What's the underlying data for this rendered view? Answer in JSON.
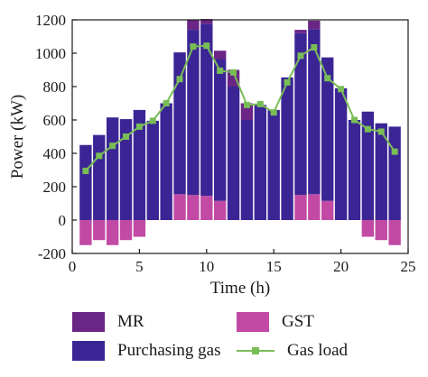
{
  "chart_data": {
    "type": "bar",
    "title": "",
    "xlabel": "Time (h)",
    "ylabel": "Power (kW)",
    "xlim": [
      0,
      25
    ],
    "ylim": [
      -200,
      1200
    ],
    "xticks": [
      0,
      5,
      10,
      15,
      20,
      25
    ],
    "yticks": [
      -200,
      0,
      200,
      400,
      600,
      800,
      1000,
      1200
    ],
    "grid": false,
    "legend_position": "bottom",
    "x": [
      1,
      2,
      3,
      4,
      5,
      6,
      7,
      8,
      9,
      10,
      11,
      12,
      13,
      14,
      15,
      16,
      17,
      18,
      19,
      20,
      21,
      22,
      23,
      24
    ],
    "series": [
      {
        "name": "MR",
        "kind": "bar",
        "color": "#6a2585",
        "values": [
          0,
          0,
          0,
          0,
          0,
          0,
          0,
          0,
          60,
          30,
          50,
          100,
          100,
          0,
          0,
          0,
          20,
          50,
          0,
          0,
          0,
          0,
          0,
          0
        ]
      },
      {
        "name": "Purchasing gas",
        "kind": "bar",
        "color": "#3b2595",
        "values": [
          450,
          510,
          615,
          605,
          660,
          595,
          700,
          850,
          990,
          1030,
          850,
          800,
          600,
          690,
          660,
          855,
          970,
          990,
          860,
          790,
          600,
          650,
          580,
          560
        ]
      },
      {
        "name": "GST",
        "kind": "bar",
        "color": "#c24aa5",
        "values": [
          -150,
          -120,
          -150,
          -120,
          -100,
          0,
          0,
          155,
          150,
          145,
          115,
          0,
          0,
          0,
          0,
          0,
          150,
          155,
          115,
          0,
          0,
          -100,
          -120,
          -150
        ]
      },
      {
        "name": "Gas load",
        "kind": "line",
        "color": "#79bd56",
        "values": [
          295,
          385,
          445,
          500,
          560,
          595,
          700,
          845,
          1040,
          1045,
          895,
          885,
          690,
          695,
          645,
          825,
          985,
          1035,
          850,
          785,
          600,
          545,
          530,
          410
        ]
      }
    ]
  },
  "legend": {
    "mr": "MR",
    "purchasing_gas": "Purchasing gas",
    "gst": "GST",
    "gas_load": "Gas load"
  }
}
